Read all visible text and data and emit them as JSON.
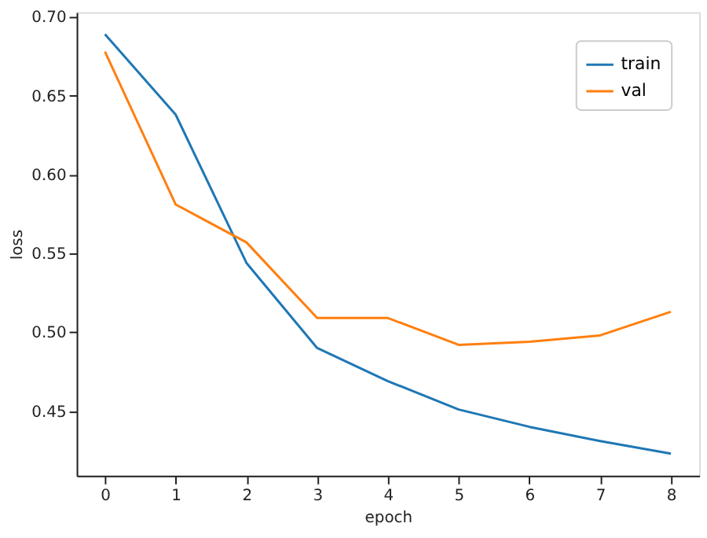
{
  "chart_data": {
    "type": "line",
    "xlabel": "epoch",
    "ylabel": "loss",
    "x": [
      0,
      1,
      2,
      3,
      4,
      5,
      6,
      7,
      8
    ],
    "series": [
      {
        "name": "train",
        "color": "#1f77b4",
        "values": [
          0.689,
          0.638,
          0.544,
          0.49,
          0.469,
          0.451,
          0.44,
          0.431,
          0.423
        ]
      },
      {
        "name": "val",
        "color": "#ff7f0e",
        "values": [
          0.678,
          0.581,
          0.557,
          0.509,
          0.509,
          0.492,
          0.494,
          0.498,
          0.513
        ]
      }
    ],
    "xlim": [
      -0.4,
      8.4
    ],
    "xticks": [
      0,
      1,
      2,
      3,
      4,
      5,
      6,
      7,
      8
    ],
    "ylim": [
      0.409,
      0.703
    ],
    "yticks": [
      0.45,
      {
        "value": 0.5,
        "label": "0.50"
      },
      0.55,
      {
        "value": 0.6,
        "label": "0.60"
      },
      0.65,
      {
        "value": 0.7,
        "label": "0.70"
      }
    ],
    "grid": false,
    "legend": "top right",
    "marker": "none",
    "line_style": "solid"
  }
}
